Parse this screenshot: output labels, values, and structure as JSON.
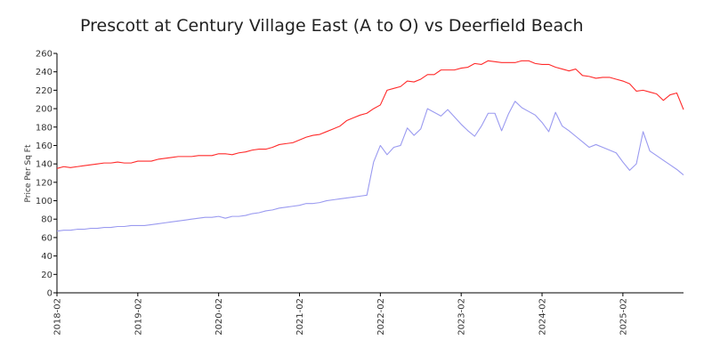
{
  "chart_data": {
    "type": "line",
    "title": "Prescott at Century Village East (A to O) vs Deerfield Beach",
    "xlabel": "",
    "ylabel": "Price Per Sq Ft",
    "ylim": [
      0,
      260
    ],
    "yticks": [
      0,
      20,
      40,
      60,
      80,
      100,
      120,
      140,
      160,
      180,
      200,
      220,
      240,
      260
    ],
    "xticks": [
      {
        "label": "2018-02",
        "month": 0
      },
      {
        "label": "2019-02",
        "month": 12
      },
      {
        "label": "2020-02",
        "month": 24
      },
      {
        "label": "2021-02",
        "month": 36
      },
      {
        "label": "2022-02",
        "month": 48
      },
      {
        "label": "2023-02",
        "month": 60
      },
      {
        "label": "2024-02",
        "month": 72
      },
      {
        "label": "2025-02",
        "month": 84
      }
    ],
    "xlim": [
      0,
      93
    ],
    "grid": false,
    "legend": "none",
    "series": [
      {
        "color": "#ff2a2a",
        "x": [
          0,
          1,
          2,
          3,
          4,
          5,
          6,
          7,
          8,
          9,
          10,
          11,
          12,
          13,
          14,
          15,
          16,
          17,
          18,
          19,
          20,
          21,
          22,
          23,
          24,
          25,
          26,
          27,
          28,
          29,
          30,
          31,
          32,
          33,
          34,
          35,
          36,
          37,
          38,
          39,
          40,
          41,
          42,
          43,
          44,
          45,
          46,
          47,
          48,
          49,
          50,
          51,
          52,
          53,
          54,
          55,
          56,
          57,
          58,
          59,
          60,
          61,
          62,
          63,
          64,
          65,
          66,
          67,
          68,
          69,
          70,
          71,
          72,
          73,
          74,
          75,
          76,
          77,
          78,
          79,
          80,
          81,
          82,
          83,
          84,
          85,
          86,
          87,
          88,
          89,
          90,
          91,
          92,
          93
        ],
        "y": [
          135,
          137,
          136,
          137,
          138,
          139,
          140,
          141,
          141,
          142,
          141,
          141,
          143,
          143,
          143,
          145,
          146,
          147,
          148,
          148,
          148,
          149,
          149,
          149,
          151,
          151,
          150,
          152,
          153,
          155,
          156,
          156,
          158,
          161,
          162,
          163,
          166,
          169,
          171,
          172,
          175,
          178,
          181,
          187,
          190,
          193,
          195,
          200,
          204,
          220,
          222,
          224,
          230,
          229,
          232,
          237,
          237,
          242,
          242,
          242,
          244,
          245,
          249,
          248,
          252,
          251,
          250,
          250,
          250,
          252,
          252,
          249,
          248,
          248,
          245,
          243,
          241,
          243,
          236,
          235,
          233,
          234,
          234,
          232,
          230,
          227,
          219,
          220,
          218,
          216,
          209,
          215,
          217,
          199
        ]
      },
      {
        "color": "#9a9af0",
        "x": [
          0,
          1,
          2,
          3,
          4,
          5,
          6,
          7,
          8,
          9,
          10,
          11,
          12,
          13,
          14,
          15,
          16,
          17,
          18,
          19,
          20,
          21,
          22,
          23,
          24,
          25,
          26,
          27,
          28,
          29,
          30,
          31,
          32,
          33,
          34,
          35,
          36,
          37,
          38,
          39,
          40,
          41,
          42,
          43,
          44,
          45,
          46,
          47,
          48,
          49,
          50,
          51,
          52,
          53,
          54,
          55,
          56,
          57,
          58,
          59,
          60,
          61,
          62,
          63,
          64,
          65,
          66,
          67,
          68,
          69,
          70,
          71,
          72,
          73,
          74,
          75,
          76,
          77,
          78,
          79,
          80,
          81,
          82,
          83,
          84,
          85,
          86,
          87,
          88,
          89,
          90,
          91,
          92,
          93
        ],
        "y": [
          67,
          68,
          68,
          69,
          69,
          70,
          70,
          71,
          71,
          72,
          72,
          73,
          73,
          73,
          74,
          75,
          76,
          77,
          78,
          79,
          80,
          81,
          82,
          82,
          83,
          81,
          83,
          83,
          84,
          86,
          87,
          89,
          90,
          92,
          93,
          94,
          95,
          97,
          97,
          98,
          100,
          101,
          102,
          103,
          104,
          105,
          106,
          142,
          160,
          150,
          158,
          160,
          179,
          171,
          178,
          200,
          196,
          192,
          199,
          191,
          183,
          176,
          170,
          181,
          195,
          195,
          176,
          194,
          208,
          201,
          197,
          193,
          185,
          175,
          196,
          181,
          176,
          170,
          164,
          158,
          161,
          158,
          155,
          152,
          142,
          133,
          140,
          175,
          154,
          149,
          144,
          139,
          134,
          128
        ]
      }
    ]
  }
}
